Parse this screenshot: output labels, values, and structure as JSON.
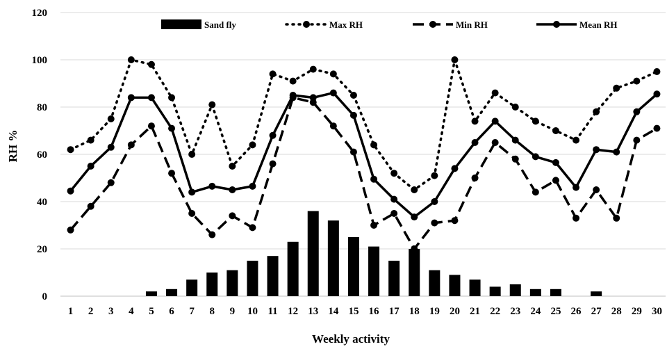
{
  "chart_data": {
    "type": "bar+line",
    "xlabel": "Weekly activity",
    "ylabel": "RH %",
    "ylim": [
      0,
      120
    ],
    "yticks": [
      0,
      20,
      40,
      60,
      80,
      100,
      120
    ],
    "categories": [
      "1",
      "2",
      "3",
      "4",
      "5",
      "6",
      "7",
      "8",
      "9",
      "10",
      "11",
      "12",
      "13",
      "14",
      "15",
      "16",
      "17",
      "18",
      "19",
      "20",
      "21",
      "22",
      "23",
      "24",
      "25",
      "26",
      "27",
      "28",
      "29",
      "30"
    ],
    "legend_position": "top",
    "grid": true,
    "series": [
      {
        "name": "Sand fly",
        "kind": "bar",
        "color": "#000000",
        "values": [
          0,
          0,
          0,
          0,
          2,
          3,
          7,
          10,
          11,
          15,
          17,
          23,
          36,
          32,
          25,
          21,
          15,
          20,
          11,
          9,
          7,
          4,
          5,
          3,
          3,
          0,
          2,
          0,
          0,
          0
        ]
      },
      {
        "name": "Max RH",
        "kind": "line",
        "style": "dotted",
        "color": "#000000",
        "values": [
          62,
          66,
          75,
          100,
          98,
          84,
          60,
          81,
          55,
          64,
          94,
          91,
          96,
          94,
          85,
          64,
          52,
          45,
          51,
          100,
          74,
          86,
          80,
          74,
          70,
          66,
          78,
          88,
          91,
          95
        ]
      },
      {
        "name": "Min RH",
        "kind": "line",
        "style": "dashed",
        "color": "#000000",
        "values": [
          28,
          38,
          48,
          64,
          72,
          52,
          35,
          26,
          34,
          29,
          56,
          84,
          82,
          72,
          61,
          30,
          35,
          20,
          31,
          32,
          50,
          65,
          58,
          44,
          49,
          33,
          45,
          33,
          66,
          71
        ]
      },
      {
        "name": "Mean RH",
        "kind": "line",
        "style": "solid",
        "color": "#000000",
        "values": [
          44.5,
          55,
          63,
          84,
          84,
          71,
          44,
          46.5,
          45,
          46.5,
          68,
          85,
          84,
          86,
          76.5,
          49.5,
          41,
          33.5,
          40,
          54,
          65,
          74,
          66,
          59,
          56.5,
          46,
          62,
          61,
          78,
          85.5
        ]
      }
    ]
  }
}
